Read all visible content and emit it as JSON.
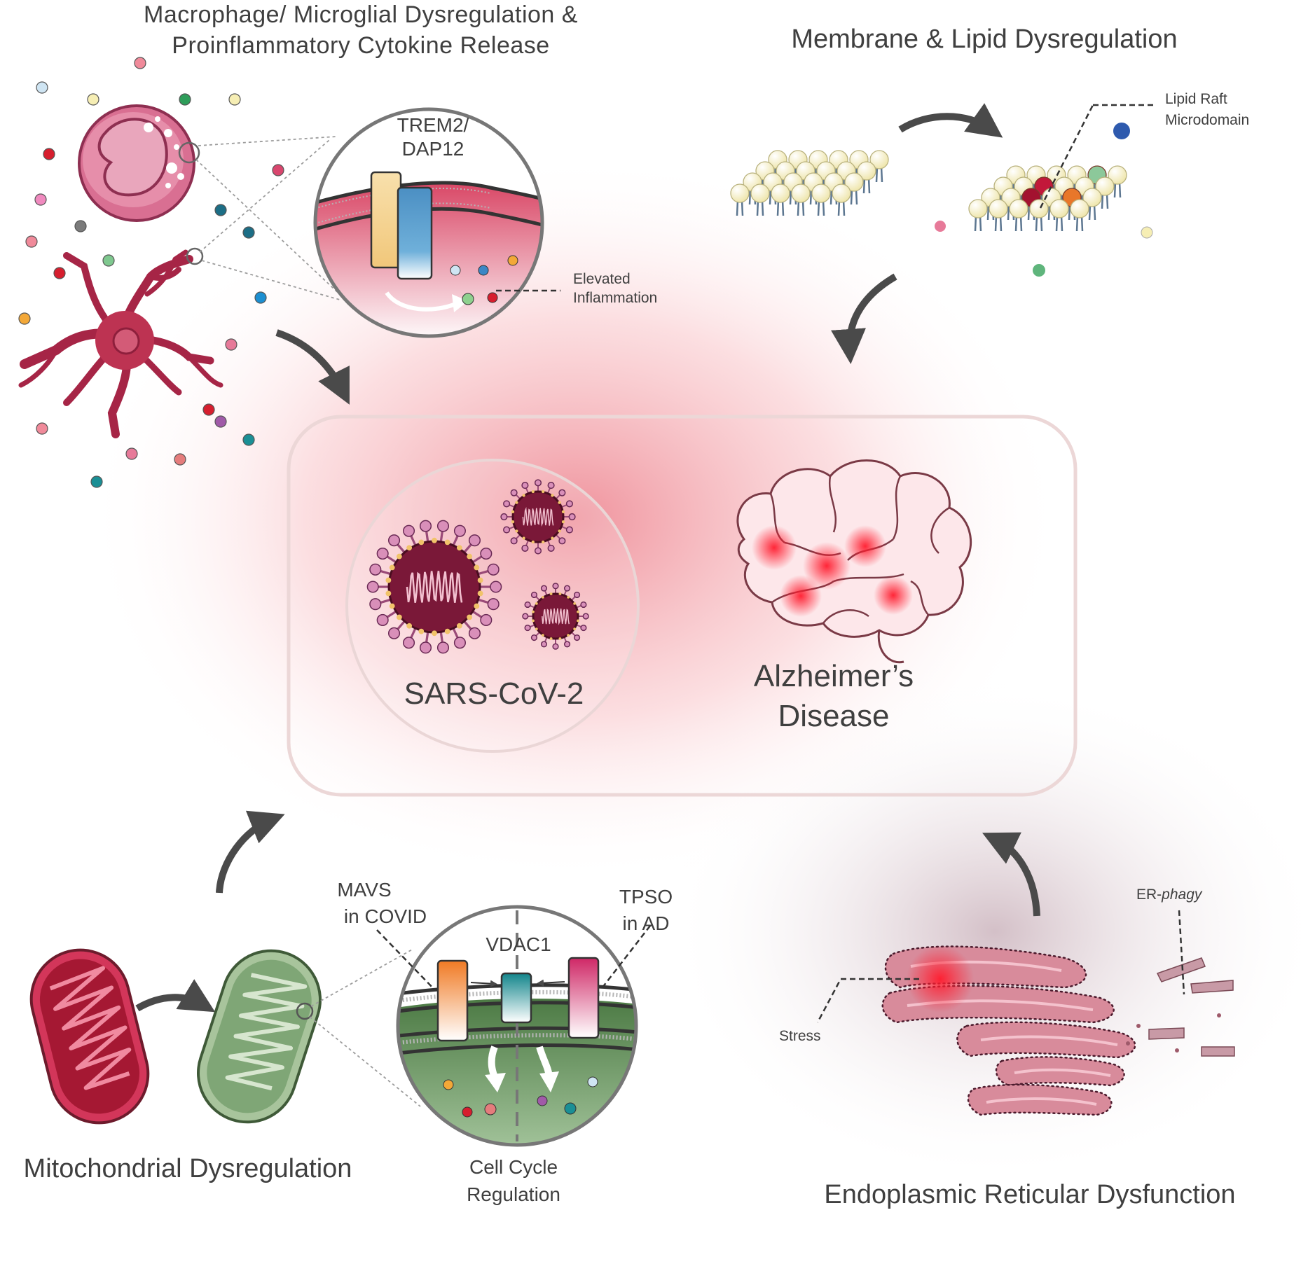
{
  "panels": {
    "macrophage": {
      "title_line1": "Macrophage/ Microglial Dysregulation &",
      "title_line2": "Proinflammatory Cytokine Release",
      "receptor_label_line1": "TREM2/",
      "receptor_label_line2": "DAP12",
      "callout_line1": "Elevated",
      "callout_line2": "Inflammation"
    },
    "membrane": {
      "title": "Membrane & Lipid Dysregulation",
      "callout_line1": "Lipid Raft",
      "callout_line2": "Microdomain"
    },
    "center": {
      "virus_label": "SARS-CoV-2",
      "disease_line1": "Alzheimer’s",
      "disease_line2": "Disease"
    },
    "mitochondria": {
      "title": "Mitochondrial Dysregulation",
      "mavs_line1": "MAVS",
      "mavs_line2": "in COVID",
      "channel_label": "VDAC1",
      "tpso_line1": "TPSO",
      "tpso_line2": "in AD",
      "cycle_line1": "Cell Cycle",
      "cycle_line2": "Regulation"
    },
    "er": {
      "title": "Endoplasmic Reticular Dysfunction",
      "stress_label": "Stress",
      "erphagy_prefix": "ER-",
      "erphagy_italic": "phagy"
    }
  },
  "colors": {
    "cell_red": "#c4354f",
    "glow_red": "#e8172e",
    "arrow_grey": "#4a4a4a",
    "lipid_yellow": "#f6f1c6",
    "mito_green": "#5f8a57",
    "channel_orange": "#f08a32",
    "channel_teal": "#1a8f95",
    "channel_pink": "#d92f6e",
    "trem2_yellow": "#f5d79b",
    "dap12_blue": "#5aa0cf"
  }
}
